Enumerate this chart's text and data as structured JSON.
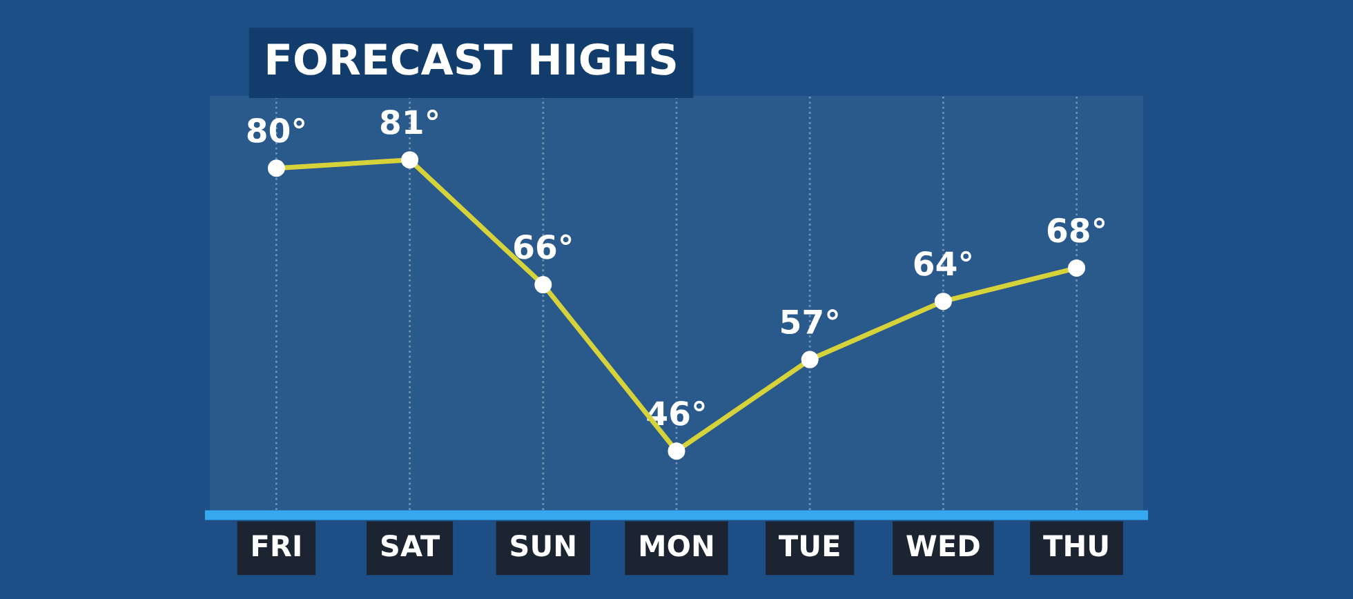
{
  "chart_data": {
    "type": "line",
    "title": "FORECAST HIGHS",
    "categories": [
      "FRI",
      "SAT",
      "SUN",
      "MON",
      "TUE",
      "WED",
      "THU"
    ],
    "series": [
      {
        "color": "#d6d23a",
        "values": [
          80,
          81,
          66,
          46,
          57,
          64,
          68
        ],
        "value_labels": [
          "80°",
          "81°",
          "66°",
          "46°",
          "57°",
          "64°",
          "68°"
        ]
      }
    ],
    "tick_labels": "x",
    "grid": "x",
    "marker": "circle",
    "line_style": "solid",
    "legend": false
  }
}
